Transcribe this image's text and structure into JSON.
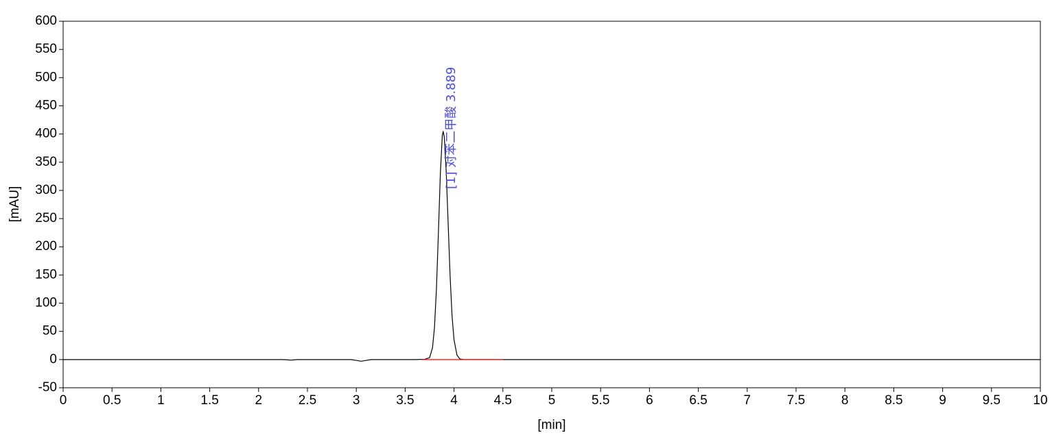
{
  "chart_data": {
    "type": "line",
    "xlabel": "[min]",
    "ylabel": "[mAU]",
    "xlim": [
      0,
      10
    ],
    "ylim": [
      -50,
      600
    ],
    "xticks": [
      0,
      0.5,
      1,
      1.5,
      2,
      2.5,
      3,
      3.5,
      4,
      4.5,
      5,
      5.5,
      6,
      6.5,
      7,
      7.5,
      8,
      8.5,
      9,
      9.5,
      10
    ],
    "yticks": [
      -50,
      0,
      50,
      100,
      150,
      200,
      250,
      300,
      350,
      400,
      450,
      500,
      550,
      600
    ],
    "series": [
      {
        "color": "#000000",
        "x": [
          0,
          2.25,
          2.3,
          2.33,
          2.36,
          2.4,
          2.95,
          3.0,
          3.05,
          3.1,
          3.15,
          3.6,
          3.7,
          3.75,
          3.78,
          3.8,
          3.82,
          3.84,
          3.86,
          3.88,
          3.889,
          3.9,
          3.92,
          3.94,
          3.96,
          3.98,
          4.0,
          4.03,
          4.06,
          4.1,
          4.2,
          10
        ],
        "values": [
          0,
          0,
          -0.5,
          -1,
          -0.5,
          0,
          0,
          -1.5,
          -3,
          -1.5,
          0,
          0,
          0.5,
          3.4,
          21,
          57,
          125,
          224,
          329,
          397,
          405,
          395,
          334,
          241,
          148,
          77,
          35,
          8,
          1,
          0,
          0,
          0
        ]
      },
      {
        "color": "#ff0000",
        "x": [
          3.67,
          4.5
        ],
        "values": [
          0,
          0
        ]
      }
    ],
    "annotations": [
      {
        "text": "[1] 对苯二甲酸 3.889",
        "x": 3.889,
        "color": "#4a4aff"
      }
    ]
  }
}
